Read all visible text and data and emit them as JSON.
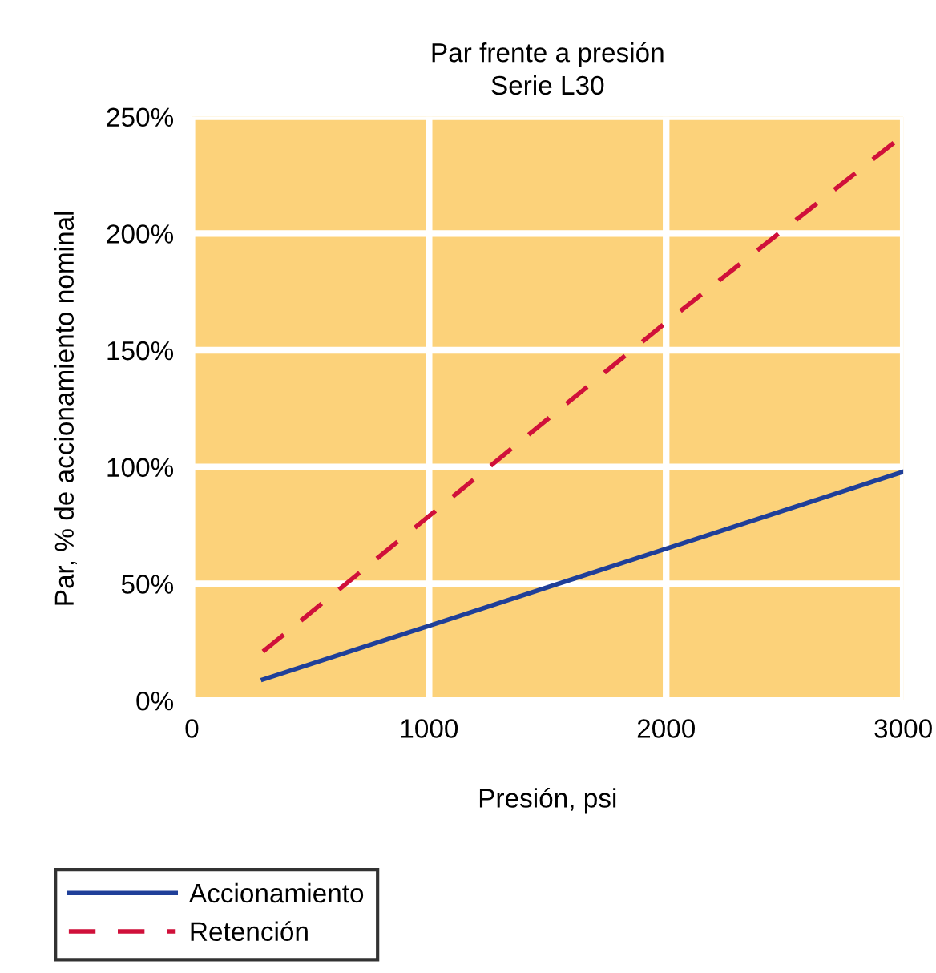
{
  "chart_data": {
    "type": "line",
    "title": "Par frente a presión\nSerie L30",
    "xlabel": "Presión, psi",
    "ylabel": "Par, % de accionamiento nominal",
    "xlim": [
      0,
      3000
    ],
    "xticks": [
      0,
      1000,
      2000,
      3000
    ],
    "ylim": [
      0,
      250
    ],
    "yticks": [
      {
        "value": 0,
        "label": "0%"
      },
      {
        "value": 50,
        "label": "50%"
      },
      {
        "value": 100,
        "label": "100%"
      },
      {
        "value": 150,
        "label": "150%"
      },
      {
        "value": 200,
        "label": "200%"
      },
      {
        "value": 250,
        "label": "250%"
      }
    ],
    "grid": true,
    "legend": "bottom left",
    "marker": "none",
    "series": [
      {
        "name": "Accionamiento",
        "color": "#1f3f99",
        "x": [
          300,
          1000,
          2000,
          3000
        ],
        "values": [
          9,
          32,
          65,
          98
        ],
        "line_style": "solid"
      },
      {
        "name": "Retención",
        "color": "#d0103a",
        "x": [
          300,
          1000,
          2000,
          3000
        ],
        "values": [
          21,
          79,
          162,
          242
        ],
        "line_style": "dashed"
      }
    ]
  }
}
